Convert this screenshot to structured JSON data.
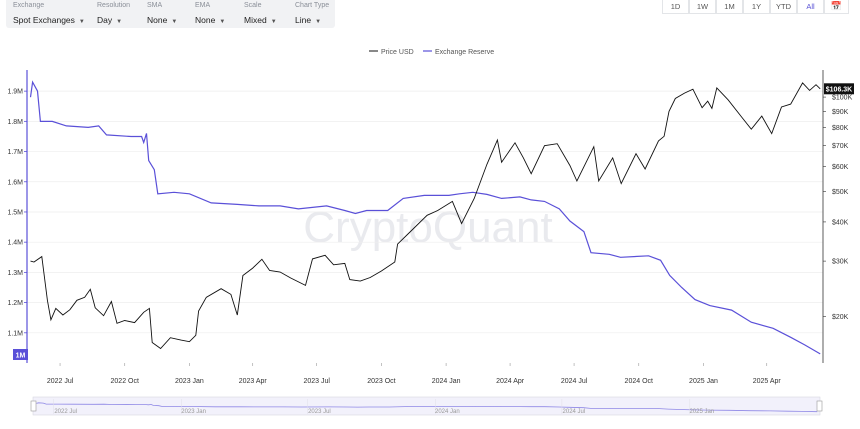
{
  "controls": [
    {
      "label": "Exchange",
      "value": "Spot Exchanges"
    },
    {
      "label": "Resolution",
      "value": "Day"
    },
    {
      "label": "SMA",
      "value": "None"
    },
    {
      "label": "EMA",
      "value": "None"
    },
    {
      "label": "Scale",
      "value": "Mixed"
    },
    {
      "label": "Chart Type",
      "value": "Line"
    }
  ],
  "ranges": [
    {
      "label": "1D",
      "active": false
    },
    {
      "label": "1W",
      "active": false
    },
    {
      "label": "1M",
      "active": false
    },
    {
      "label": "1Y",
      "active": false
    },
    {
      "label": "YTD",
      "active": false
    },
    {
      "label": "All",
      "active": true
    }
  ],
  "calendar_icon": "calendar-icon",
  "watermark": "CryptoQuant",
  "colors": {
    "reserve": "#5a50d8",
    "price": "#111111",
    "accent": "#5b54d6",
    "badge_bg": "#111111"
  },
  "chart_data": {
    "type": "line",
    "legend_position": "top-center",
    "series": [
      {
        "name": "Price USD",
        "axis": "right",
        "color": "#111111",
        "points": [
          [
            "2022-05-20",
            30000
          ],
          [
            "2022-05-25",
            29800
          ],
          [
            "2022-06-05",
            31000
          ],
          [
            "2022-06-13",
            22500
          ],
          [
            "2022-06-18",
            19500
          ],
          [
            "2022-06-25",
            21200
          ],
          [
            "2022-07-05",
            20200
          ],
          [
            "2022-07-15",
            21000
          ],
          [
            "2022-07-25",
            22500
          ],
          [
            "2022-08-05",
            23000
          ],
          [
            "2022-08-13",
            24400
          ],
          [
            "2022-08-20",
            21300
          ],
          [
            "2022-09-01",
            20100
          ],
          [
            "2022-09-12",
            22300
          ],
          [
            "2022-09-20",
            19000
          ],
          [
            "2022-10-01",
            19400
          ],
          [
            "2022-10-15",
            19100
          ],
          [
            "2022-10-28",
            20600
          ],
          [
            "2022-11-05",
            21200
          ],
          [
            "2022-11-09",
            16500
          ],
          [
            "2022-11-21",
            15800
          ],
          [
            "2022-12-05",
            17100
          ],
          [
            "2022-12-20",
            16800
          ],
          [
            "2023-01-01",
            16600
          ],
          [
            "2023-01-10",
            17400
          ],
          [
            "2023-01-14",
            20800
          ],
          [
            "2023-01-25",
            23000
          ],
          [
            "2023-02-15",
            24500
          ],
          [
            "2023-03-01",
            23500
          ],
          [
            "2023-03-10",
            20200
          ],
          [
            "2023-03-18",
            27000
          ],
          [
            "2023-04-01",
            28500
          ],
          [
            "2023-04-14",
            30400
          ],
          [
            "2023-04-25",
            28000
          ],
          [
            "2023-05-10",
            27700
          ],
          [
            "2023-05-25",
            26500
          ],
          [
            "2023-06-15",
            25100
          ],
          [
            "2023-06-25",
            30500
          ],
          [
            "2023-07-13",
            31300
          ],
          [
            "2023-07-25",
            29200
          ],
          [
            "2023-08-10",
            29500
          ],
          [
            "2023-08-17",
            26200
          ],
          [
            "2023-09-01",
            25900
          ],
          [
            "2023-09-15",
            26600
          ],
          [
            "2023-10-01",
            27900
          ],
          [
            "2023-10-20",
            29800
          ],
          [
            "2023-10-24",
            34000
          ],
          [
            "2023-11-10",
            37000
          ],
          [
            "2023-12-05",
            42000
          ],
          [
            "2023-12-20",
            43500
          ],
          [
            "2024-01-10",
            46500
          ],
          [
            "2024-01-23",
            39500
          ],
          [
            "2024-02-10",
            47500
          ],
          [
            "2024-02-28",
            61000
          ],
          [
            "2024-03-14",
            73000
          ],
          [
            "2024-03-20",
            62000
          ],
          [
            "2024-04-08",
            71500
          ],
          [
            "2024-04-20",
            64000
          ],
          [
            "2024-05-01",
            57000
          ],
          [
            "2024-05-20",
            70000
          ],
          [
            "2024-06-07",
            71000
          ],
          [
            "2024-06-25",
            60500
          ],
          [
            "2024-07-05",
            54000
          ],
          [
            "2024-07-29",
            69500
          ],
          [
            "2024-08-05",
            54000
          ],
          [
            "2024-08-25",
            64000
          ],
          [
            "2024-09-06",
            53000
          ],
          [
            "2024-09-27",
            66000
          ],
          [
            "2024-10-10",
            59000
          ],
          [
            "2024-10-29",
            72500
          ],
          [
            "2024-11-06",
            75000
          ],
          [
            "2024-11-13",
            90000
          ],
          [
            "2024-11-22",
            99000
          ],
          [
            "2024-12-05",
            103000
          ],
          [
            "2024-12-17",
            106000
          ],
          [
            "2024-12-30",
            92500
          ],
          [
            "2025-01-07",
            97000
          ],
          [
            "2025-01-13",
            92000
          ],
          [
            "2025-01-20",
            107000
          ],
          [
            "2025-02-05",
            98000
          ],
          [
            "2025-02-25",
            86000
          ],
          [
            "2025-03-10",
            79000
          ],
          [
            "2025-03-25",
            87000
          ],
          [
            "2025-04-08",
            76500
          ],
          [
            "2025-04-22",
            93000
          ],
          [
            "2025-05-05",
            95000
          ],
          [
            "2025-05-22",
            111000
          ],
          [
            "2025-06-01",
            105000
          ],
          [
            "2025-06-10",
            109500
          ],
          [
            "2025-06-16",
            106300
          ]
        ]
      },
      {
        "name": "Exchange Reserve",
        "axis": "left",
        "color": "#5a50d8",
        "points": [
          [
            "2022-05-20",
            1.88
          ],
          [
            "2022-05-23",
            1.93
          ],
          [
            "2022-05-30",
            1.9
          ],
          [
            "2022-06-03",
            1.8
          ],
          [
            "2022-06-20",
            1.8
          ],
          [
            "2022-07-10",
            1.785
          ],
          [
            "2022-08-10",
            1.78
          ],
          [
            "2022-08-25",
            1.785
          ],
          [
            "2022-09-05",
            1.755
          ],
          [
            "2022-10-10",
            1.75
          ],
          [
            "2022-10-25",
            1.75
          ],
          [
            "2022-10-28",
            1.73
          ],
          [
            "2022-11-01",
            1.76
          ],
          [
            "2022-11-04",
            1.67
          ],
          [
            "2022-11-12",
            1.64
          ],
          [
            "2022-11-17",
            1.56
          ],
          [
            "2022-12-10",
            1.565
          ],
          [
            "2023-01-01",
            1.56
          ],
          [
            "2023-02-01",
            1.53
          ],
          [
            "2023-03-10",
            1.525
          ],
          [
            "2023-04-10",
            1.52
          ],
          [
            "2023-05-10",
            1.52
          ],
          [
            "2023-06-05",
            1.51
          ],
          [
            "2023-07-15",
            1.52
          ],
          [
            "2023-08-10",
            1.505
          ],
          [
            "2023-08-25",
            1.495
          ],
          [
            "2023-09-10",
            1.505
          ],
          [
            "2023-10-10",
            1.505
          ],
          [
            "2023-11-01",
            1.545
          ],
          [
            "2023-12-01",
            1.555
          ],
          [
            "2024-01-05",
            1.555
          ],
          [
            "2024-01-20",
            1.56
          ],
          [
            "2024-02-08",
            1.565
          ],
          [
            "2024-02-28",
            1.558
          ],
          [
            "2024-03-20",
            1.545
          ],
          [
            "2024-04-15",
            1.55
          ],
          [
            "2024-05-01",
            1.54
          ],
          [
            "2024-05-20",
            1.535
          ],
          [
            "2024-06-10",
            1.51
          ],
          [
            "2024-06-25",
            1.47
          ],
          [
            "2024-07-15",
            1.435
          ],
          [
            "2024-07-25",
            1.365
          ],
          [
            "2024-08-20",
            1.36
          ],
          [
            "2024-09-05",
            1.35
          ],
          [
            "2024-10-15",
            1.355
          ],
          [
            "2024-11-01",
            1.34
          ],
          [
            "2024-11-14",
            1.29
          ],
          [
            "2024-12-01",
            1.25
          ],
          [
            "2024-12-20",
            1.21
          ],
          [
            "2025-01-10",
            1.19
          ],
          [
            "2025-02-10",
            1.175
          ],
          [
            "2025-03-10",
            1.135
          ],
          [
            "2025-04-10",
            1.115
          ],
          [
            "2025-05-05",
            1.085
          ],
          [
            "2025-05-25",
            1.06
          ],
          [
            "2025-06-16",
            1.03
          ]
        ]
      }
    ],
    "x_ticks": [
      {
        "date": "2022-07-01",
        "label": "2022 Jul"
      },
      {
        "date": "2022-10-01",
        "label": "2022 Oct"
      },
      {
        "date": "2023-01-01",
        "label": "2023 Jan"
      },
      {
        "date": "2023-04-01",
        "label": "2023 Apr"
      },
      {
        "date": "2023-07-01",
        "label": "2023 Jul"
      },
      {
        "date": "2023-10-01",
        "label": "2023 Oct"
      },
      {
        "date": "2024-01-01",
        "label": "2024 Jan"
      },
      {
        "date": "2024-04-01",
        "label": "2024 Apr"
      },
      {
        "date": "2024-07-01",
        "label": "2024 Jul"
      },
      {
        "date": "2024-10-01",
        "label": "2024 Oct"
      },
      {
        "date": "2025-01-01",
        "label": "2025 Jan"
      },
      {
        "date": "2025-04-01",
        "label": "2025 Apr"
      }
    ],
    "xlim": [
      "2022-05-15",
      "2025-06-20"
    ],
    "y_left": {
      "scale": "linear",
      "range": [
        1.0,
        1.97
      ],
      "ticks": [
        {
          "v": 1.1,
          "label": "1.1M"
        },
        {
          "v": 1.2,
          "label": "1.2M"
        },
        {
          "v": 1.3,
          "label": "1.3M"
        },
        {
          "v": 1.4,
          "label": "1.4M"
        },
        {
          "v": 1.5,
          "label": "1.5M"
        },
        {
          "v": 1.6,
          "label": "1.6M"
        },
        {
          "v": 1.7,
          "label": "1.7M"
        },
        {
          "v": 1.8,
          "label": "1.8M"
        },
        {
          "v": 1.9,
          "label": "1.9M"
        }
      ]
    },
    "y_right": {
      "scale": "log",
      "range": [
        14200,
        122000
      ],
      "ticks": [
        {
          "v": 20000,
          "label": "$20K"
        },
        {
          "v": 30000,
          "label": "$30K"
        },
        {
          "v": 40000,
          "label": "$40K"
        },
        {
          "v": 50000,
          "label": "$50K"
        },
        {
          "v": 60000,
          "label": "$60K"
        },
        {
          "v": 70000,
          "label": "$70K"
        },
        {
          "v": 80000,
          "label": "$80K"
        },
        {
          "v": 90000,
          "label": "$90K"
        },
        {
          "v": 100000,
          "label": "$100K"
        }
      ]
    },
    "last_value_badges": {
      "price": "$106.3K",
      "reserve": "1M"
    },
    "grid": "horizontal",
    "navigator_labels": [
      "2022 Jul",
      "2023 Jan",
      "2023 Jul",
      "2024 Jan",
      "2024 Jul",
      "2025 Jan"
    ]
  }
}
